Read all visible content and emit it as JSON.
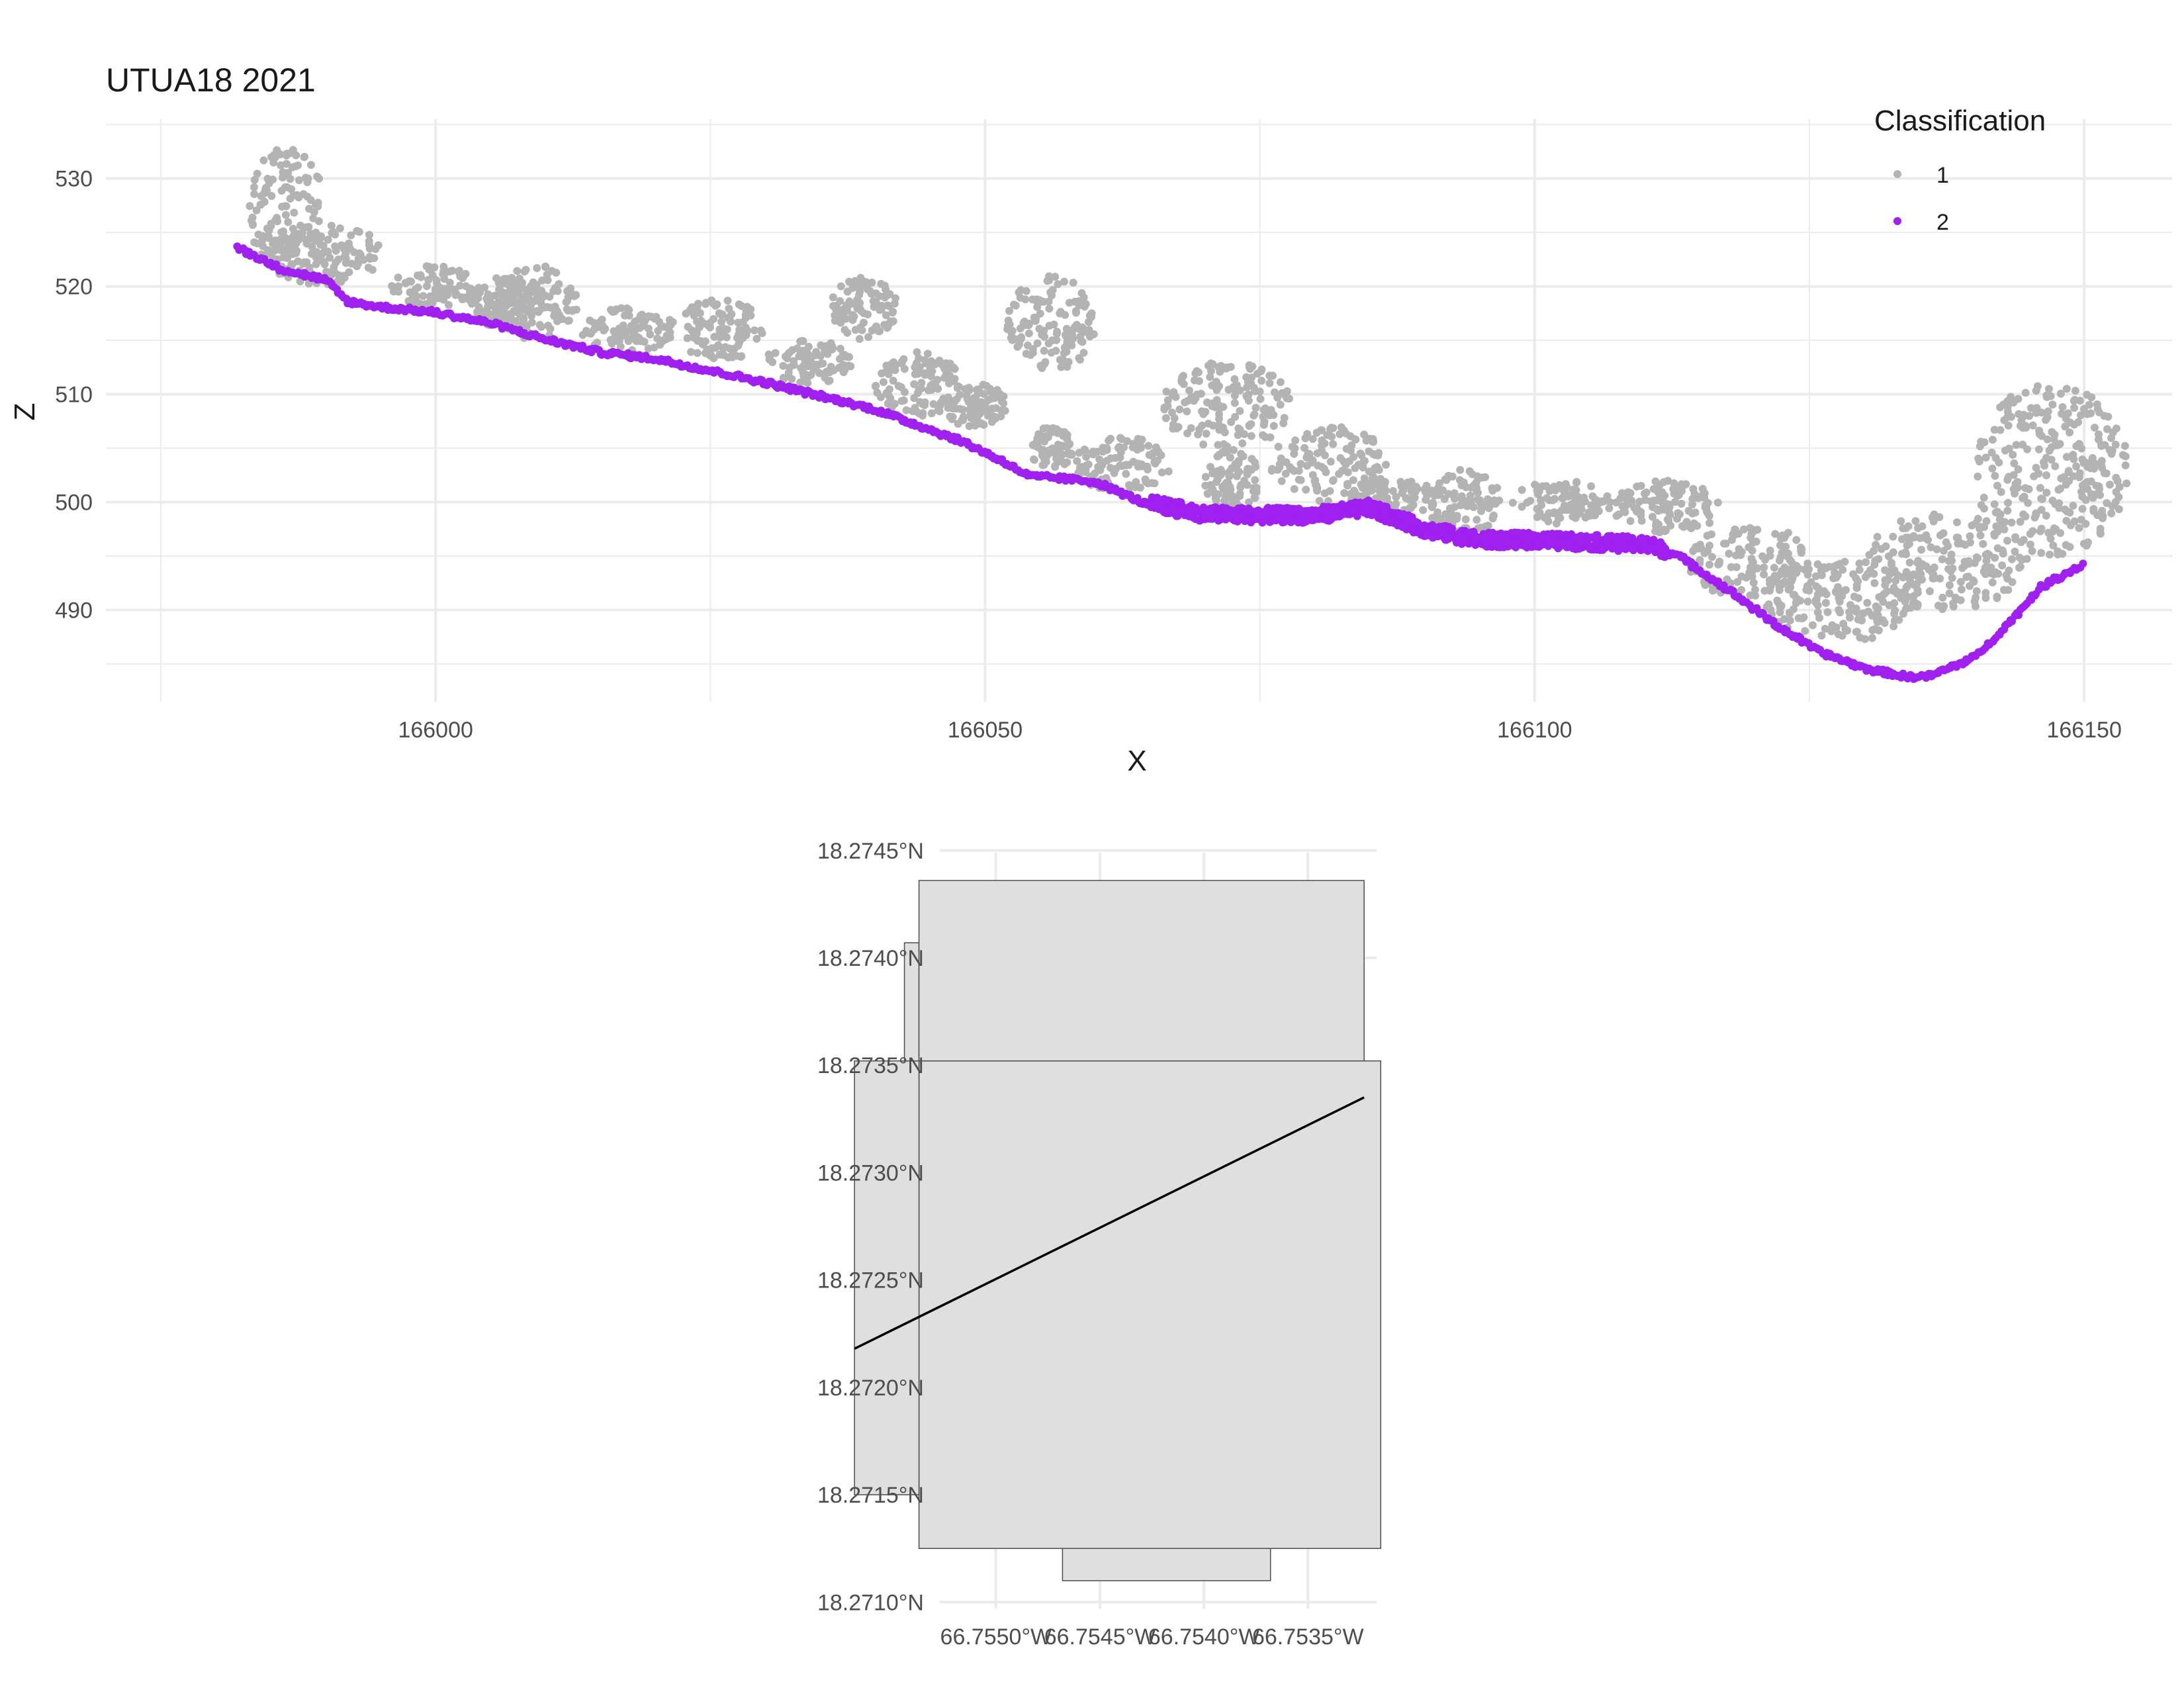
{
  "colors": {
    "class_1": "#b3b3b3",
    "class_2": "#a020f0",
    "grid": "#ebebeb",
    "polygon_fill": "#dfdfdf",
    "polygon_stroke": "#4d4d4d",
    "line": "#000000",
    "text": "#1a1a1a",
    "tick_text": "#4d4d4d"
  },
  "chart_data": [
    {
      "type": "scatter",
      "title": "UTUA18 2021",
      "xlabel": "X",
      "ylabel": "Z",
      "xlim": [
        165970,
        166158
      ],
      "ylim": [
        481.5,
        535.5
      ],
      "x_ticks": [
        166000,
        166050,
        166100,
        166150
      ],
      "x_tick_labels": [
        "166000",
        "166050",
        "166100",
        "166150"
      ],
      "y_ticks": [
        490,
        500,
        510,
        520,
        530
      ],
      "y_tick_labels": [
        "490",
        "500",
        "510",
        "520",
        "530"
      ],
      "grid": true,
      "legend": {
        "title": "Classification",
        "position": "top-right",
        "entries": [
          "1",
          "2"
        ]
      },
      "series": [
        {
          "name": "1",
          "color": "#b3b3b3",
          "clusters": [
            {
              "x": [
                165983,
                165990
              ],
              "y": [
                521,
                533
              ]
            },
            {
              "x": [
                165985,
                165995
              ],
              "y": [
                520,
                526
              ]
            },
            {
              "x": [
                165996,
                166004
              ],
              "y": [
                518,
                522
              ]
            },
            {
              "x": [
                166003,
                166010
              ],
              "y": [
                516,
                521
              ]
            },
            {
              "x": [
                166005,
                166013
              ],
              "y": [
                515,
                522
              ]
            },
            {
              "x": [
                166013,
                166022
              ],
              "y": [
                514,
                518
              ]
            },
            {
              "x": [
                166022,
                166030
              ],
              "y": [
                513,
                519
              ]
            },
            {
              "x": [
                166030,
                166038
              ],
              "y": [
                511,
                515
              ]
            },
            {
              "x": [
                166036,
                166042
              ],
              "y": [
                515,
                521
              ]
            },
            {
              "x": [
                166040,
                166048
              ],
              "y": [
                508,
                514
              ]
            },
            {
              "x": [
                166046,
                166052
              ],
              "y": [
                507,
                511
              ]
            },
            {
              "x": [
                166052,
                166060
              ],
              "y": [
                512,
                521
              ]
            },
            {
              "x": [
                166054,
                166058
              ],
              "y": [
                503,
                507
              ]
            },
            {
              "x": [
                166058,
                166067
              ],
              "y": [
                501,
                506
              ]
            },
            {
              "x": [
                166066,
                166078
              ],
              "y": [
                505,
                513
              ]
            },
            {
              "x": [
                166070,
                166075
              ],
              "y": [
                499,
                505
              ]
            },
            {
              "x": [
                166076,
                166087
              ],
              "y": [
                500,
                507
              ]
            },
            {
              "x": [
                166083,
                166092
              ],
              "y": [
                499,
                502
              ]
            },
            {
              "x": [
                166090,
                166097
              ],
              "y": [
                497,
                503
              ]
            },
            {
              "x": [
                166098,
                166107
              ],
              "y": [
                498,
                502
              ]
            },
            {
              "x": [
                166107,
                166117
              ],
              "y": [
                497,
                502
              ]
            },
            {
              "x": [
                166114,
                166125
              ],
              "y": [
                491,
                498
              ]
            },
            {
              "x": [
                166121,
                166135
              ],
              "y": [
                487,
                495
              ]
            },
            {
              "x": [
                166130,
                166145
              ],
              "y": [
                490,
                499
              ]
            },
            {
              "x": [
                166140,
                166154
              ],
              "y": [
                495,
                511
              ]
            }
          ]
        },
        {
          "name": "2",
          "color": "#a020f0",
          "ground_profile": {
            "x": [
              165982,
              165986,
              165990,
              165992,
              165995,
              166000,
              166005,
              166010,
              166015,
              166020,
              166030,
              166040,
              166048,
              166052,
              166054,
              166056,
              166060,
              166065,
              166070,
              166075,
              166080,
              166085,
              166090,
              166095,
              166100,
              166105,
              166110,
              166113,
              166118,
              166122,
              166126,
              166130,
              166134,
              166136,
              166140,
              166143,
              166146,
              166150
            ],
            "y": [
              523.5,
              521.5,
              520.5,
              518.5,
              518.0,
              517.5,
              516.5,
              515.0,
              513.8,
              513.2,
              511.0,
              508.5,
              505.5,
              503.5,
              502.3,
              502.2,
              501.8,
              499.6,
              498.6,
              498.5,
              498.5,
              499.2,
              497.2,
              496.2,
              496.2,
              496.0,
              495.8,
              495.0,
              491.5,
              488.5,
              486.0,
              484.5,
              483.7,
              483.8,
              485.5,
              488.5,
              492.0,
              494.2
            ]
          }
        }
      ]
    },
    {
      "type": "map",
      "x_ticks": [
        -66.755,
        -66.7545,
        -66.754,
        -66.7535
      ],
      "x_tick_labels": [
        "66.7550°W",
        "66.7545°W",
        "66.7540°W",
        "66.7535°W"
      ],
      "y_ticks": [
        18.271,
        18.2715,
        18.272,
        18.2725,
        18.273,
        18.2735,
        18.274,
        18.2745
      ],
      "y_tick_labels": [
        "18.2710°N",
        "18.2715°N",
        "18.2720°N",
        "18.2725°N",
        "18.2730°N",
        "18.2735°N",
        "18.2740°N",
        "18.2745°N"
      ],
      "xlim": [
        -66.75527,
        -66.75317
      ],
      "ylim": [
        18.27097,
        18.27449
      ],
      "tiles": [
        {
          "lon": [
            -66.75468,
            -66.75368
          ],
          "lat": [
            18.2711,
            18.27127
          ]
        },
        {
          "lon": [
            -66.75537,
            -66.75315
          ],
          "lat": [
            18.27125,
            18.27352
          ]
        },
        {
          "lon": [
            -66.75568,
            -66.75537
          ],
          "lat": [
            18.2715,
            18.27352
          ]
        },
        {
          "lon": [
            -66.75544,
            -66.75537
          ],
          "lat": [
            18.27352,
            18.27407
          ]
        },
        {
          "lon": [
            -66.75537,
            -66.75323
          ],
          "lat": [
            18.27352,
            18.27436
          ]
        }
      ],
      "transect": {
        "lon": [
          -66.75568,
          -66.75323
        ],
        "lat": [
          18.27218,
          18.27335
        ]
      }
    }
  ]
}
